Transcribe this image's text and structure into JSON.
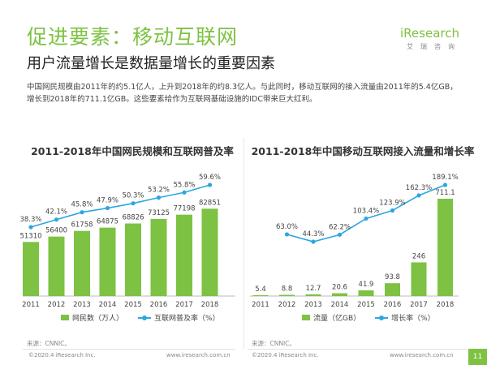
{
  "header": {
    "title": "促进要素：移动互联网",
    "subtitle": "用户流量增长是数据量增长的重要因素",
    "description": "中国网民规模由2011年的约5.1亿人，上升到2018年的约8.3亿人。与此同时，移动互联网的接入流量由2011年的5.4亿GB，增长到2018年的711.1亿GB。这些要素给作为互联网基础设施的IDC带来巨大红利。"
  },
  "logo": {
    "main": "iResearch",
    "sub": "艾瑞咨询"
  },
  "colors": {
    "bar": "#7dc242",
    "line": "#2ba7e0",
    "accent": "#7dc242"
  },
  "chart_data": [
    {
      "type": "bar",
      "title": "2011-2018年中国网民规模和互联网普及率",
      "categories": [
        "2011",
        "2012",
        "2013",
        "2014",
        "2015",
        "2016",
        "2017",
        "2018"
      ],
      "series": [
        {
          "name": "网民数（万人）",
          "type": "bar",
          "values": [
            51310,
            56400,
            61758,
            64875,
            68826,
            73125,
            77198,
            82851
          ]
        },
        {
          "name": "互联网普及率（%）",
          "type": "line",
          "values": [
            38.3,
            42.1,
            45.8,
            47.9,
            50.3,
            53.2,
            55.8,
            59.6
          ],
          "labels": [
            "38.3%",
            "42.1%",
            "45.8%",
            "47.9%",
            "50.3%",
            "53.2%",
            "55.8%",
            "59.6%"
          ]
        }
      ],
      "source": "来源：CNNIC。"
    },
    {
      "type": "bar",
      "title": "2011-2018年中国移动互联网接入流量和增长率",
      "categories": [
        "2011",
        "2012",
        "2013",
        "2014",
        "2015",
        "2016",
        "2017",
        "2018"
      ],
      "series": [
        {
          "name": "流量（亿GB）",
          "type": "bar",
          "values": [
            5.4,
            8.8,
            12.7,
            20.6,
            41.9,
            93.8,
            246,
            711.1
          ]
        },
        {
          "name": "增长率（%）",
          "type": "line",
          "values": [
            null,
            63.0,
            44.3,
            62.2,
            103.4,
            123.9,
            162.3,
            189.1
          ],
          "labels": [
            "",
            "63.0%",
            "44.3%",
            "62.2%",
            "103.4%",
            "123.9%",
            "162.3%",
            "189.1%"
          ]
        }
      ],
      "source": "来源：CNNIC。"
    }
  ],
  "footer": {
    "left_copyright": "©2020.4 iResearch Inc.",
    "left_url": "www.iresearch.com.cn",
    "right_copyright": "©2020.4 iResearch Inc.",
    "right_url": "www.iresearch.com.cn",
    "page": "11"
  }
}
